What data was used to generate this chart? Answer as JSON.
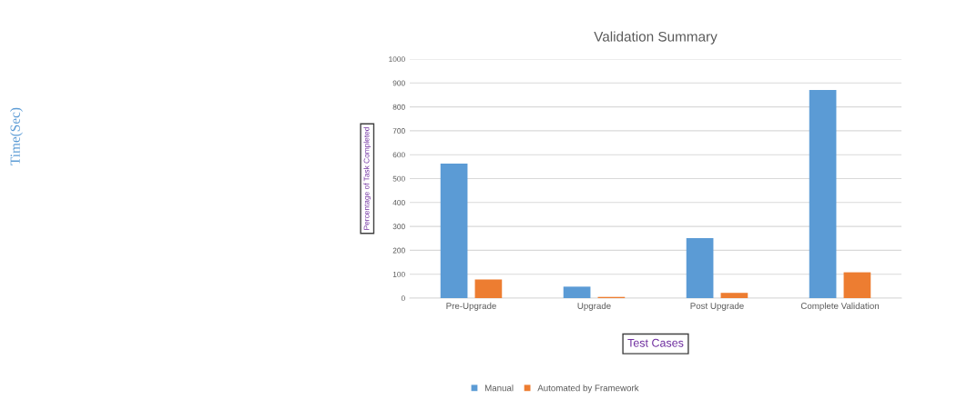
{
  "chart_data": {
    "type": "bar",
    "title": "Validation Summary",
    "xlabel": "Test Cases",
    "ylabel": "Percentage of Task Completed",
    "annotations": [
      "Time(Sec)"
    ],
    "categories": [
      "Pre-Upgrade",
      "Upgrade",
      "Post Upgrade",
      "Complete Validation"
    ],
    "series": [
      {
        "name": "Manual",
        "color": "#5b9bd5",
        "values": [
          563,
          48,
          251,
          871
        ]
      },
      {
        "name": "Automated by Framework",
        "color": "#ed7d31",
        "values": [
          78,
          5,
          22,
          108
        ]
      }
    ],
    "ylim": [
      0,
      1000
    ],
    "yticks": [
      0,
      100,
      200,
      300,
      400,
      500,
      600,
      700,
      800,
      900,
      1000
    ],
    "grid": "y",
    "legend": "bottom"
  }
}
